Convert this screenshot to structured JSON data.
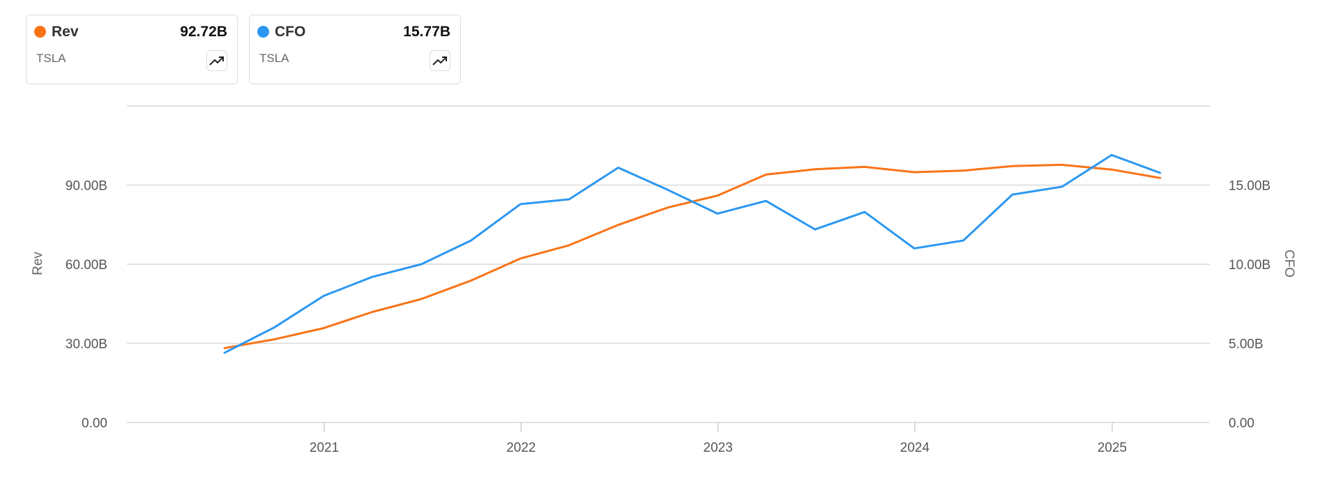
{
  "legend": [
    {
      "name": "Rev",
      "value": "92.72B",
      "ticker": "TSLA",
      "color": "#f97316",
      "icon": "trend-up-icon"
    },
    {
      "name": "CFO",
      "value": "15.77B",
      "ticker": "TSLA",
      "color": "#2b97f2",
      "icon": "trend-up-icon"
    }
  ],
  "chart_data": {
    "type": "line",
    "xlabel": "",
    "x_ticks": [
      "2021",
      "2022",
      "2023",
      "2024",
      "2025"
    ],
    "x": [
      "2020-06-30",
      "2020-09-30",
      "2020-12-31",
      "2021-03-31",
      "2021-06-30",
      "2021-09-30",
      "2021-12-31",
      "2022-03-31",
      "2022-06-30",
      "2022-09-30",
      "2022-12-31",
      "2023-03-31",
      "2023-06-30",
      "2023-09-30",
      "2023-12-31",
      "2024-03-31",
      "2024-06-30",
      "2024-09-30",
      "2024-12-31",
      "2025-03-31"
    ],
    "y_left": {
      "label": "Rev",
      "ticks": [
        "0.00",
        "30.00B",
        "60.00B",
        "90.00B"
      ],
      "range": [
        0,
        120
      ]
    },
    "y_right": {
      "label": "CFO",
      "ticks": [
        "0.00",
        "5.00B",
        "10.00B",
        "15.00B"
      ],
      "range": [
        0,
        20
      ]
    },
    "grid": true,
    "series": [
      {
        "name": "Rev",
        "axis": "left",
        "color": "#f97316",
        "values": [
          28.2,
          31.5,
          35.8,
          41.9,
          46.8,
          53.8,
          62.2,
          67.2,
          74.9,
          81.5,
          86.0,
          94.0,
          96.0,
          96.9,
          94.9,
          95.5,
          97.2,
          97.7,
          95.9,
          92.7
        ]
      },
      {
        "name": "CFO",
        "axis": "right",
        "color": "#2b97f2",
        "values": [
          4.4,
          6.0,
          8.0,
          9.2,
          10.0,
          11.5,
          13.8,
          14.1,
          16.1,
          14.7,
          13.2,
          14.0,
          12.2,
          13.3,
          11.0,
          11.5,
          14.4,
          14.9,
          16.9,
          15.77
        ]
      }
    ]
  }
}
